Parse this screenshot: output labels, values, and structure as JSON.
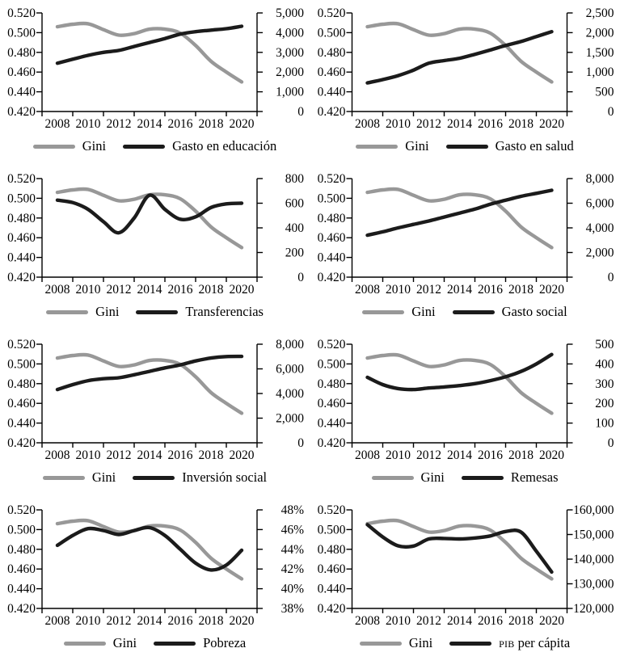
{
  "figure": {
    "background": "#ffffff",
    "gini_color": "#989898",
    "series_color": "#1b1b1b",
    "axis_color": "#000000"
  },
  "chart_grid": {
    "columns": 2,
    "rows": 4
  },
  "chart_data": [
    {
      "type": "line",
      "name": "gini-vs-gasto-educacion",
      "x_years": [
        2008,
        2009,
        2010,
        2011,
        2012,
        2013,
        2014,
        2015,
        2016,
        2017,
        2018,
        2019,
        2020
      ],
      "x_tick_labels": [
        "2008",
        "2010",
        "2012",
        "2014",
        "2016",
        "2018",
        "2020"
      ],
      "left_axis": {
        "min": 0.42,
        "max": 0.52,
        "tick_labels": [
          "0.520",
          "0.500",
          "0.480",
          "0.460",
          "0.440",
          "0.420"
        ]
      },
      "right_axis": {
        "min": 0,
        "max": 5000,
        "tick_labels": [
          "5,000",
          "4,000",
          "3,000",
          "2,000",
          "1,000",
          "0"
        ]
      },
      "legend": [
        {
          "label": "Gini"
        },
        {
          "label": "Gasto en educación"
        }
      ],
      "series": [
        {
          "name": "Gini",
          "axis": "left",
          "values": [
            0.506,
            0.5085,
            0.509,
            0.503,
            0.4975,
            0.499,
            0.5035,
            0.5035,
            0.4995,
            0.487,
            0.471,
            0.46,
            0.45
          ]
        },
        {
          "name": "Gasto en educación",
          "axis": "right",
          "values": [
            2450,
            2650,
            2850,
            3000,
            3100,
            3300,
            3500,
            3700,
            3925,
            4050,
            4125,
            4200,
            4325
          ]
        }
      ]
    },
    {
      "type": "line",
      "name": "gini-vs-gasto-salud",
      "x_years": [
        2008,
        2009,
        2010,
        2011,
        2012,
        2013,
        2014,
        2015,
        2016,
        2017,
        2018,
        2019,
        2020
      ],
      "x_tick_labels": [
        "2008",
        "2010",
        "2012",
        "2014",
        "2016",
        "2018",
        "2020"
      ],
      "left_axis": {
        "min": 0.42,
        "max": 0.52,
        "tick_labels": [
          "0.520",
          "0.500",
          "0.480",
          "0.460",
          "0.440",
          "0.420"
        ]
      },
      "right_axis": {
        "min": 0,
        "max": 2500,
        "tick_labels": [
          "2,500",
          "2,000",
          "1,500",
          "1,000",
          "500",
          "0"
        ]
      },
      "legend": [
        {
          "label": "Gini"
        },
        {
          "label": "Gasto en salud"
        }
      ],
      "series": [
        {
          "name": "Gini",
          "axis": "left",
          "values": [
            0.506,
            0.5085,
            0.509,
            0.503,
            0.4975,
            0.499,
            0.5035,
            0.5035,
            0.4995,
            0.487,
            0.471,
            0.46,
            0.45
          ]
        },
        {
          "name": "Gasto en salud",
          "axis": "right",
          "values": [
            725,
            810,
            910,
            1050,
            1225,
            1290,
            1350,
            1450,
            1560,
            1675,
            1775,
            1900,
            2025
          ]
        }
      ]
    },
    {
      "type": "line",
      "name": "gini-vs-transferencias",
      "x_years": [
        2008,
        2009,
        2010,
        2011,
        2012,
        2013,
        2014,
        2015,
        2016,
        2017,
        2018,
        2019,
        2020
      ],
      "x_tick_labels": [
        "2008",
        "2010",
        "2012",
        "2014",
        "2016",
        "2018",
        "2020"
      ],
      "left_axis": {
        "min": 0.42,
        "max": 0.52,
        "tick_labels": [
          "0.520",
          "0.500",
          "0.480",
          "0.460",
          "0.440",
          "0.420"
        ]
      },
      "right_axis": {
        "min": 0,
        "max": 800,
        "tick_labels": [
          "800",
          "600",
          "400",
          "200",
          "0"
        ]
      },
      "legend": [
        {
          "label": "Gini"
        },
        {
          "label": "Transferencias"
        }
      ],
      "series": [
        {
          "name": "Gini",
          "axis": "left",
          "values": [
            0.506,
            0.5085,
            0.509,
            0.503,
            0.4975,
            0.499,
            0.5035,
            0.5035,
            0.4995,
            0.487,
            0.471,
            0.46,
            0.45
          ]
        },
        {
          "name": "Transferencias",
          "axis": "right",
          "values": [
            625,
            605,
            550,
            450,
            360,
            480,
            665,
            550,
            470,
            490,
            565,
            595,
            600
          ]
        }
      ]
    },
    {
      "type": "line",
      "name": "gini-vs-gasto-social",
      "x_years": [
        2008,
        2009,
        2010,
        2011,
        2012,
        2013,
        2014,
        2015,
        2016,
        2017,
        2018,
        2019,
        2020
      ],
      "x_tick_labels": [
        "2008",
        "2010",
        "2012",
        "2014",
        "2016",
        "2018",
        "2020"
      ],
      "left_axis": {
        "min": 0.42,
        "max": 0.52,
        "tick_labels": [
          "0.520",
          "0.500",
          "0.480",
          "0.460",
          "0.440",
          "0.420"
        ]
      },
      "right_axis": {
        "min": 0,
        "max": 8000,
        "tick_labels": [
          "8,000",
          "6,000",
          "4,000",
          "2,000",
          "0"
        ]
      },
      "legend": [
        {
          "label": "Gini"
        },
        {
          "label": "Gasto social"
        }
      ],
      "series": [
        {
          "name": "Gini",
          "axis": "left",
          "values": [
            0.506,
            0.5085,
            0.509,
            0.503,
            0.4975,
            0.499,
            0.5035,
            0.5035,
            0.4995,
            0.487,
            0.471,
            0.46,
            0.45
          ]
        },
        {
          "name": "Gasto social",
          "axis": "right",
          "values": [
            3400,
            3680,
            4000,
            4280,
            4560,
            4880,
            5200,
            5520,
            5920,
            6240,
            6560,
            6800,
            7050
          ]
        }
      ]
    },
    {
      "type": "line",
      "name": "gini-vs-inversion-social",
      "x_years": [
        2008,
        2009,
        2010,
        2011,
        2012,
        2013,
        2014,
        2015,
        2016,
        2017,
        2018,
        2019,
        2020
      ],
      "x_tick_labels": [
        "2008",
        "2010",
        "2012",
        "2014",
        "2016",
        "2018",
        "2020"
      ],
      "left_axis": {
        "min": 0.42,
        "max": 0.52,
        "tick_labels": [
          "0.520",
          "0.500",
          "0.480",
          "0.460",
          "0.440",
          "0.420"
        ]
      },
      "right_axis": {
        "min": 0,
        "max": 8000,
        "tick_labels": [
          "8,000",
          "6,000",
          "4,000",
          "2,000",
          "0"
        ]
      },
      "legend": [
        {
          "label": "Gini"
        },
        {
          "label": "Inversión social"
        }
      ],
      "series": [
        {
          "name": "Gini",
          "axis": "left",
          "values": [
            0.506,
            0.5085,
            0.509,
            0.503,
            0.4975,
            0.499,
            0.5035,
            0.5035,
            0.4995,
            0.487,
            0.471,
            0.46,
            0.45
          ]
        },
        {
          "name": "Inversión social",
          "axis": "right",
          "values": [
            4320,
            4720,
            5040,
            5200,
            5280,
            5520,
            5800,
            6080,
            6320,
            6640,
            6880,
            7000,
            7010
          ]
        }
      ]
    },
    {
      "type": "line",
      "name": "gini-vs-remesas",
      "x_years": [
        2008,
        2009,
        2010,
        2011,
        2012,
        2013,
        2014,
        2015,
        2016,
        2017,
        2018,
        2019,
        2020
      ],
      "x_tick_labels": [
        "2008",
        "2010",
        "2012",
        "2014",
        "2016",
        "2018",
        "2020"
      ],
      "left_axis": {
        "min": 0.42,
        "max": 0.52,
        "tick_labels": [
          "0.520",
          "0.500",
          "0.480",
          "0.460",
          "0.440",
          "0.420"
        ]
      },
      "right_axis": {
        "min": 0,
        "max": 500,
        "tick_labels": [
          "500",
          "400",
          "300",
          "200",
          "100",
          "0"
        ]
      },
      "legend": [
        {
          "label": "Gini"
        },
        {
          "label": "Remesas"
        }
      ],
      "series": [
        {
          "name": "Gini",
          "axis": "left",
          "values": [
            0.506,
            0.5085,
            0.509,
            0.503,
            0.4975,
            0.499,
            0.5035,
            0.5035,
            0.4995,
            0.487,
            0.471,
            0.46,
            0.45
          ]
        },
        {
          "name": "Remesas",
          "axis": "right",
          "values": [
            332,
            295,
            275,
            270,
            278,
            283,
            290,
            300,
            315,
            335,
            362,
            400,
            448
          ]
        }
      ]
    },
    {
      "type": "line",
      "name": "gini-vs-pobreza",
      "x_years": [
        2008,
        2009,
        2010,
        2011,
        2012,
        2013,
        2014,
        2015,
        2016,
        2017,
        2018,
        2019,
        2020
      ],
      "x_tick_labels": [
        "2008",
        "2010",
        "2012",
        "2014",
        "2016",
        "2018",
        "2020"
      ],
      "left_axis": {
        "min": 0.42,
        "max": 0.52,
        "tick_labels": [
          "0.520",
          "0.500",
          "0.480",
          "0.460",
          "0.440",
          "0.420"
        ]
      },
      "right_axis": {
        "min": 38,
        "max": 48,
        "tick_labels": [
          "48%",
          "46%",
          "44%",
          "42%",
          "40%",
          "38%"
        ]
      },
      "legend": [
        {
          "label": "Gini"
        },
        {
          "label": "Pobreza"
        }
      ],
      "series": [
        {
          "name": "Gini",
          "axis": "left",
          "values": [
            0.506,
            0.5085,
            0.509,
            0.503,
            0.4975,
            0.499,
            0.5035,
            0.5035,
            0.4995,
            0.487,
            0.471,
            0.46,
            0.45
          ]
        },
        {
          "name": "Pobreza",
          "axis": "right",
          "values": [
            44.4,
            45.4,
            46.1,
            45.9,
            45.5,
            45.9,
            46.2,
            45.4,
            44.0,
            42.6,
            41.9,
            42.4,
            43.9
          ]
        }
      ]
    },
    {
      "type": "line",
      "name": "gini-vs-pib-per-capita",
      "x_years": [
        2008,
        2009,
        2010,
        2011,
        2012,
        2013,
        2014,
        2015,
        2016,
        2017,
        2018,
        2019,
        2020
      ],
      "x_tick_labels": [
        "2008",
        "2010",
        "2012",
        "2014",
        "2016",
        "2018",
        "2020"
      ],
      "left_axis": {
        "min": 0.42,
        "max": 0.52,
        "tick_labels": [
          "0.520",
          "0.500",
          "0.480",
          "0.460",
          "0.440",
          "0.420"
        ]
      },
      "right_axis": {
        "min": 120000,
        "max": 160000,
        "tick_labels": [
          "160,000",
          "150,000",
          "140,000",
          "130,000",
          "120,000"
        ]
      },
      "legend": [
        {
          "label": "Gini"
        },
        {
          "label": "PIB per cápita",
          "smallcaps_prefix": "PIB"
        }
      ],
      "series": [
        {
          "name": "Gini",
          "axis": "left",
          "values": [
            0.506,
            0.5085,
            0.509,
            0.503,
            0.4975,
            0.499,
            0.5035,
            0.5035,
            0.4995,
            0.487,
            0.471,
            0.46,
            0.45
          ]
        },
        {
          "name": "PIB per cápita",
          "axis": "right",
          "values": [
            154000,
            149000,
            145400,
            145300,
            148200,
            148400,
            148200,
            148600,
            149400,
            151200,
            151000,
            143200,
            134800
          ]
        }
      ]
    }
  ]
}
